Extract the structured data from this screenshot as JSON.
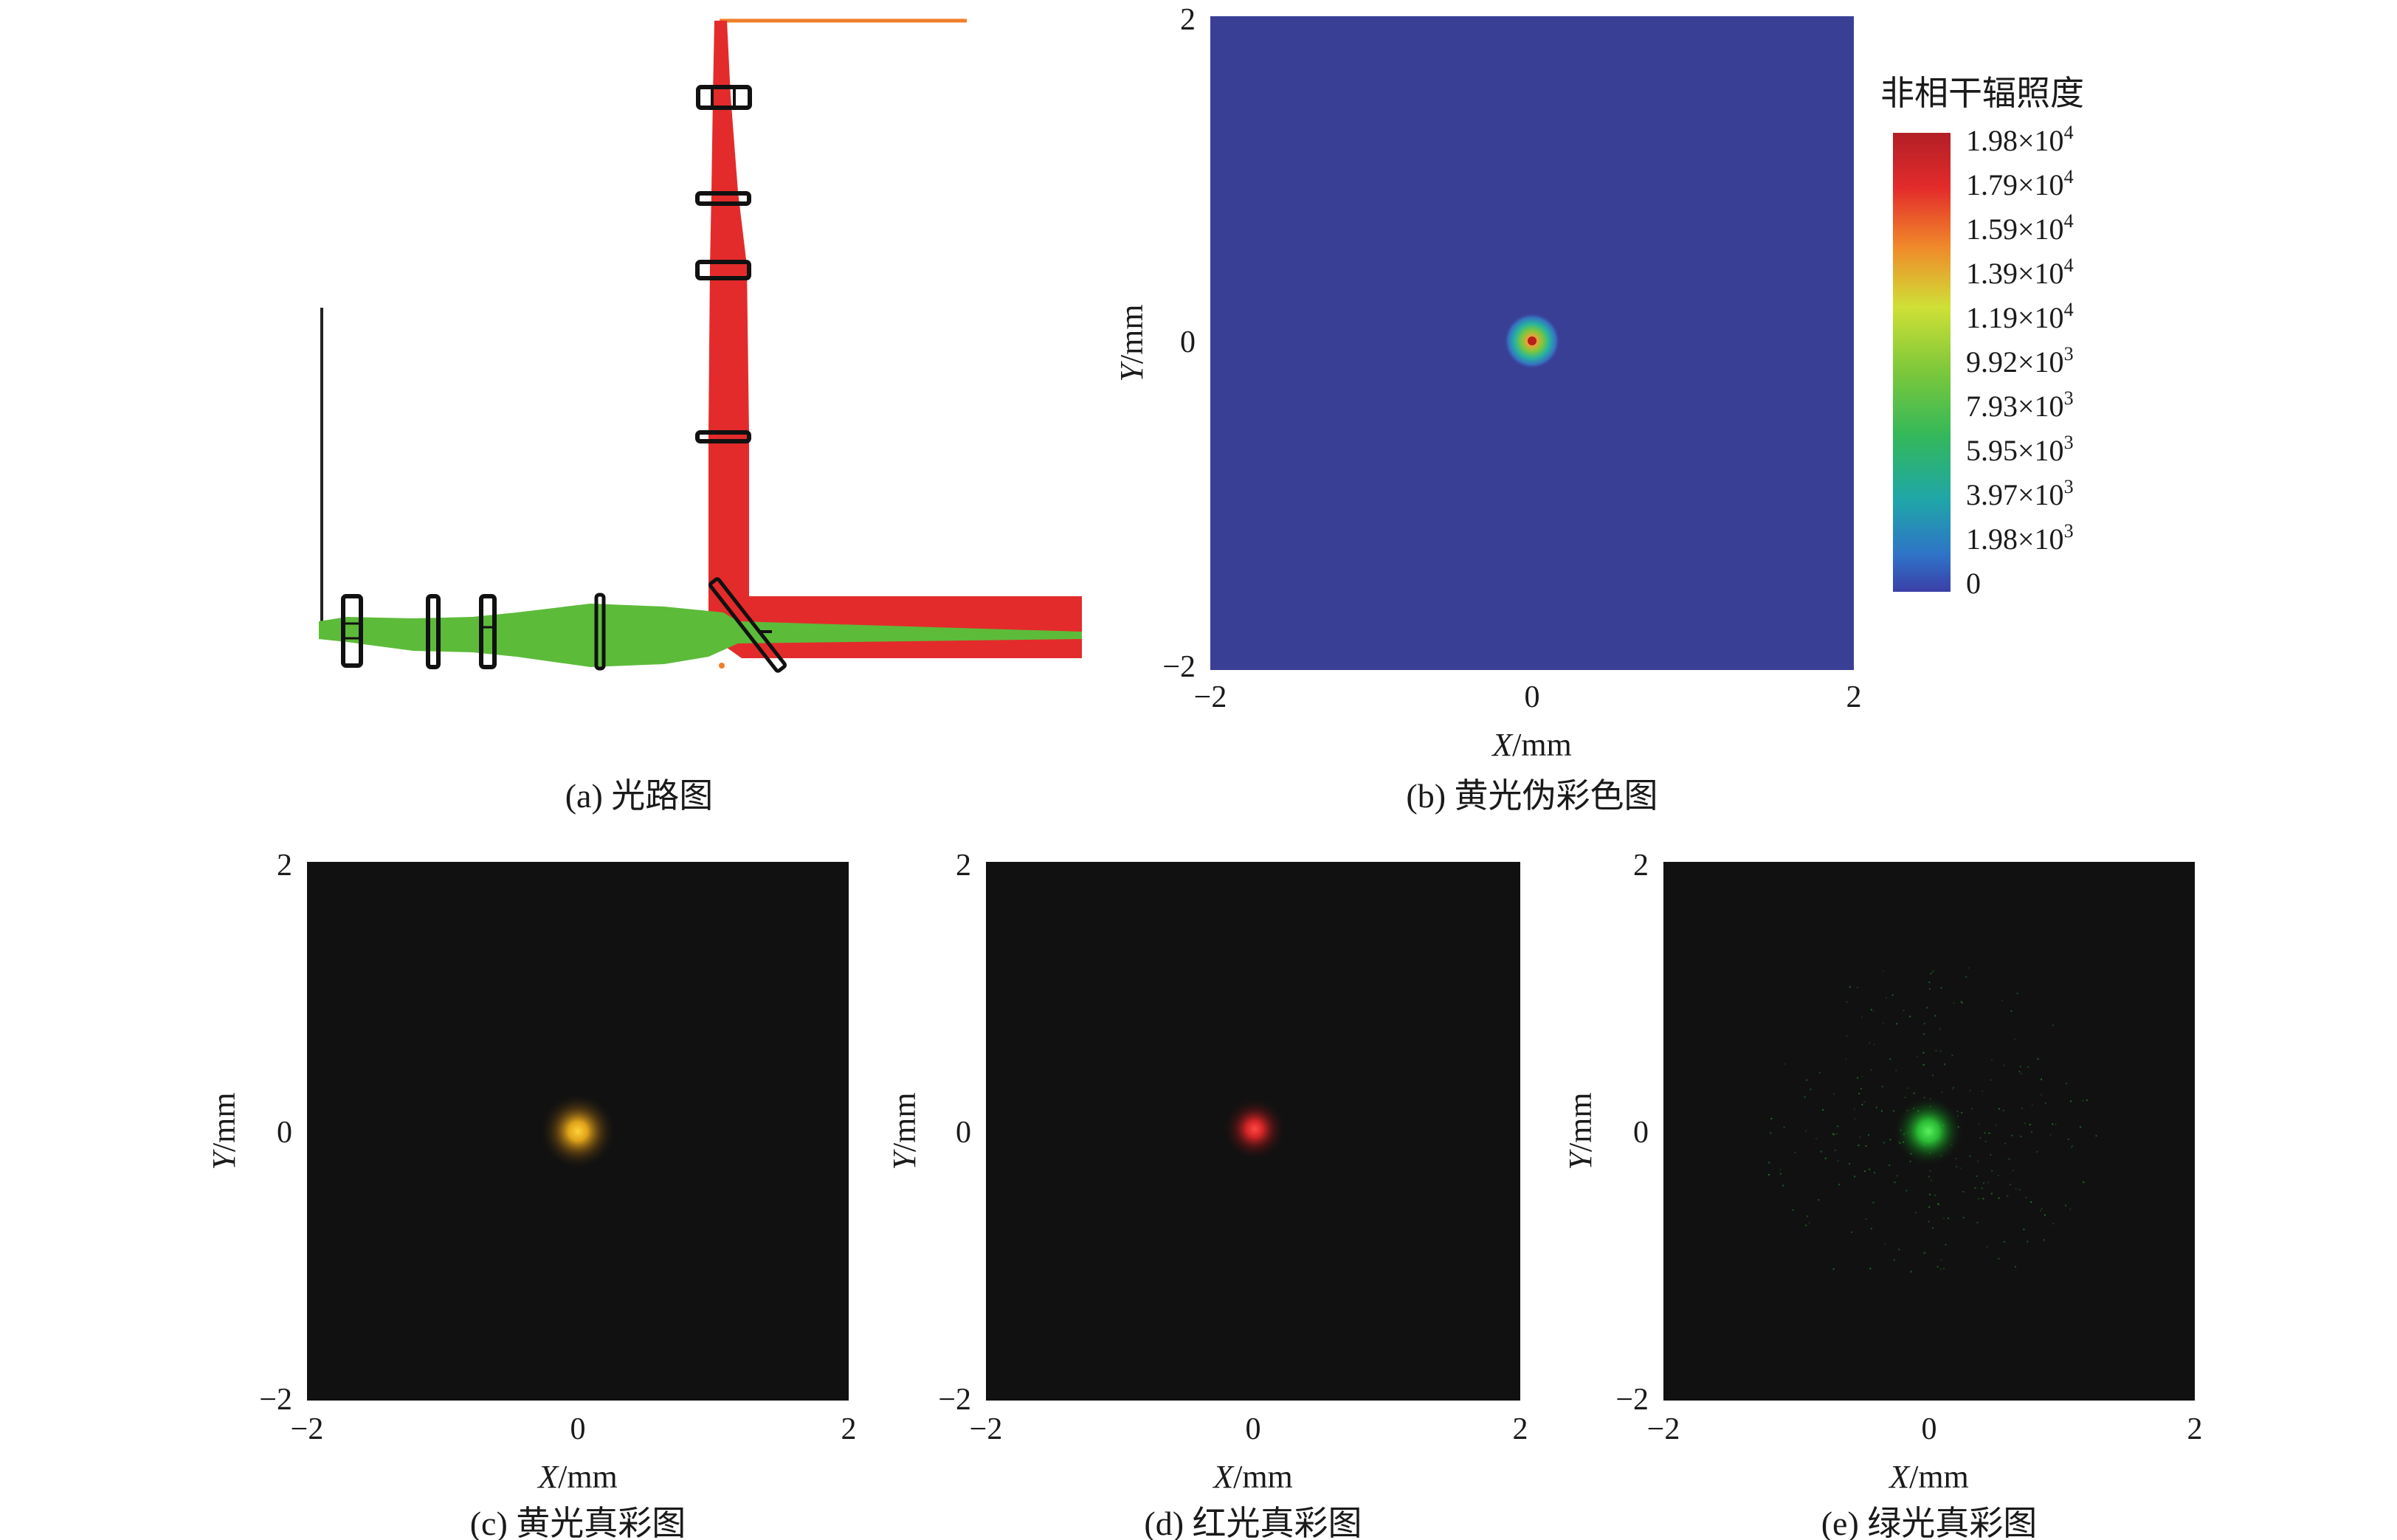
{
  "figure": {
    "panels": [
      {
        "id": "a",
        "caption": "(a) 光路图"
      },
      {
        "id": "b",
        "caption": "(b) 黄光伪彩色图",
        "x_ticks": [
          "−2",
          "0",
          "2"
        ],
        "y_ticks": [
          "2",
          "0",
          "−2"
        ],
        "x_label_var": "X",
        "x_label_unit": "/mm",
        "y_label_var": "Y",
        "y_label_unit": "/mm"
      },
      {
        "id": "c",
        "caption": "(c) 黄光真彩图",
        "x_ticks": [
          "−2",
          "0",
          "2"
        ],
        "y_ticks": [
          "2",
          "0",
          "−2"
        ],
        "x_label_var": "X",
        "x_label_unit": "/mm",
        "y_label_var": "Y",
        "y_label_unit": "/mm"
      },
      {
        "id": "d",
        "caption": "(d) 红光真彩图",
        "x_ticks": [
          "−2",
          "0",
          "2"
        ],
        "y_ticks": [
          "2",
          "0",
          "−2"
        ],
        "x_label_var": "X",
        "x_label_unit": "/mm",
        "y_label_var": "Y",
        "y_label_unit": "/mm"
      },
      {
        "id": "e",
        "caption": "(e) 绿光真彩图",
        "x_ticks": [
          "−2",
          "0",
          "2"
        ],
        "y_ticks": [
          "2",
          "0",
          "−2"
        ],
        "x_label_var": "X",
        "x_label_unit": "/mm",
        "y_label_var": "Y",
        "y_label_unit": "/mm"
      }
    ],
    "colorbar": {
      "title": "非相干辐照度",
      "labels": [
        {
          "mant": "1.98×10",
          "exp": "4"
        },
        {
          "mant": "1.79×10",
          "exp": "4"
        },
        {
          "mant": "1.59×10",
          "exp": "4"
        },
        {
          "mant": "1.39×10",
          "exp": "4"
        },
        {
          "mant": "1.19×10",
          "exp": "4"
        },
        {
          "mant": "9.92×10",
          "exp": "3"
        },
        {
          "mant": "7.93×10",
          "exp": "3"
        },
        {
          "mant": "5.95×10",
          "exp": "3"
        },
        {
          "mant": "3.97×10",
          "exp": "3"
        },
        {
          "mant": "1.98×10",
          "exp": "3"
        },
        {
          "mant": "0",
          "exp": ""
        }
      ]
    },
    "colors": {
      "red_beam": "#e32b2b",
      "green_beam": "#5dbb3a",
      "orange_line": "#f07e2a",
      "false_color_bg": "#3a3f96",
      "true_color_bg": "#111111",
      "yellow_spot": "#f5b21c",
      "red_spot": "#e8282a",
      "green_spot": "#2fd83a"
    }
  }
}
